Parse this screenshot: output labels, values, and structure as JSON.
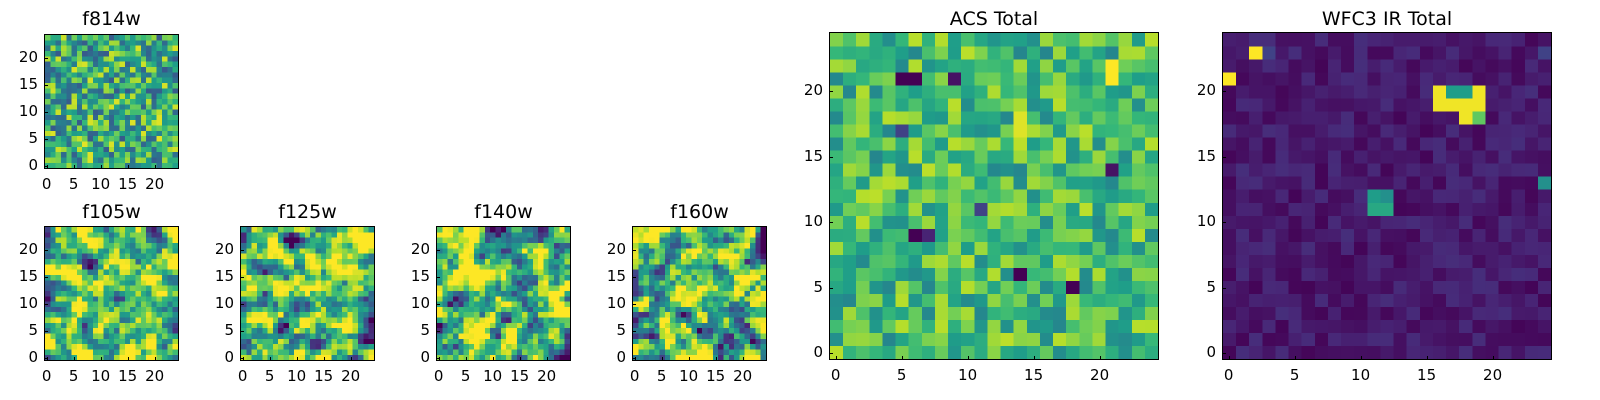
{
  "colormap": "viridis",
  "colors": {
    "background": "#ffffff",
    "axes": "#000000"
  },
  "chart_data": [
    {
      "type": "heatmap",
      "title": "f814w",
      "grid": [
        25,
        25
      ],
      "xlim": [
        0,
        25
      ],
      "ylim": [
        0,
        25
      ],
      "xticks": [
        0,
        5,
        10,
        15,
        20
      ],
      "yticks": [
        0,
        5,
        10,
        15,
        20
      ],
      "seed": 11,
      "mean": 0.62,
      "spread": 0.34,
      "smooth": 0,
      "hotspots": []
    },
    {
      "type": "heatmap",
      "title": "f105w",
      "grid": [
        25,
        25
      ],
      "xlim": [
        0,
        25
      ],
      "ylim": [
        0,
        25
      ],
      "xticks": [
        0,
        5,
        10,
        15,
        20
      ],
      "yticks": [
        0,
        5,
        10,
        15,
        20
      ],
      "seed": 23,
      "mean": 0.72,
      "spread": 0.5,
      "smooth": 1,
      "hotspots": []
    },
    {
      "type": "heatmap",
      "title": "f125w",
      "grid": [
        25,
        25
      ],
      "xlim": [
        0,
        25
      ],
      "ylim": [
        0,
        25
      ],
      "xticks": [
        0,
        5,
        10,
        15,
        20
      ],
      "yticks": [
        0,
        5,
        10,
        15,
        20
      ],
      "seed": 37,
      "mean": 0.66,
      "spread": 0.55,
      "smooth": 1,
      "hotspots": []
    },
    {
      "type": "heatmap",
      "title": "f140w",
      "grid": [
        25,
        25
      ],
      "xlim": [
        0,
        25
      ],
      "ylim": [
        0,
        25
      ],
      "xticks": [
        0,
        5,
        10,
        15,
        20
      ],
      "yticks": [
        0,
        5,
        10,
        15,
        20
      ],
      "seed": 41,
      "mean": 0.68,
      "spread": 0.55,
      "smooth": 1,
      "hotspots": []
    },
    {
      "type": "heatmap",
      "title": "f160w",
      "grid": [
        25,
        25
      ],
      "xlim": [
        0,
        25
      ],
      "ylim": [
        0,
        25
      ],
      "xticks": [
        0,
        5,
        10,
        15,
        20
      ],
      "yticks": [
        0,
        5,
        10,
        15,
        20
      ],
      "seed": 53,
      "mean": 0.68,
      "spread": 0.55,
      "smooth": 1,
      "hotspots": []
    },
    {
      "type": "heatmap",
      "title": "ACS Total",
      "grid": [
        25,
        25
      ],
      "xlim": [
        0,
        25
      ],
      "ylim": [
        0,
        25
      ],
      "xticks": [
        0,
        5,
        10,
        15,
        20
      ],
      "yticks": [
        0,
        5,
        10,
        15,
        20
      ],
      "seed": 67,
      "mean": 0.68,
      "spread": 0.22,
      "smooth": 0,
      "hotspots": [
        [
          5,
          21,
          0.0
        ],
        [
          6,
          21,
          0.0
        ],
        [
          9,
          21,
          0.05
        ],
        [
          14,
          18,
          0.95
        ],
        [
          14,
          17,
          0.95
        ],
        [
          14,
          16,
          0.9
        ],
        [
          21,
          22,
          1.0
        ],
        [
          21,
          21,
          1.0
        ],
        [
          6,
          9,
          0.0
        ],
        [
          7,
          9,
          0.1
        ],
        [
          14,
          6,
          0.0
        ],
        [
          18,
          5,
          0.0
        ],
        [
          21,
          14,
          0.05
        ],
        [
          5,
          17,
          0.2
        ],
        [
          11,
          11,
          0.2
        ]
      ]
    },
    {
      "type": "heatmap",
      "title": "WFC3 IR Total",
      "grid": [
        25,
        25
      ],
      "xlim": [
        0,
        25
      ],
      "ylim": [
        0,
        25
      ],
      "xticks": [
        0,
        5,
        10,
        15,
        20
      ],
      "yticks": [
        0,
        5,
        10,
        15,
        20
      ],
      "seed": 79,
      "mean": 0.07,
      "spread": 0.06,
      "smooth": 0,
      "hotspots": [
        [
          16,
          20,
          0.98
        ],
        [
          17,
          20,
          0.55
        ],
        [
          18,
          20,
          0.55
        ],
        [
          19,
          20,
          0.98
        ],
        [
          16,
          19,
          0.98
        ],
        [
          17,
          19,
          0.98
        ],
        [
          18,
          19,
          0.98
        ],
        [
          19,
          19,
          0.98
        ],
        [
          18,
          18,
          0.98
        ],
        [
          19,
          18,
          0.75
        ],
        [
          11,
          12,
          0.55
        ],
        [
          12,
          12,
          0.5
        ],
        [
          11,
          11,
          0.6
        ],
        [
          12,
          11,
          0.6
        ],
        [
          2,
          23,
          1.0
        ],
        [
          0,
          21,
          1.0
        ],
        [
          24,
          13,
          0.5
        ],
        [
          3,
          23,
          0.2
        ],
        [
          24,
          23,
          0.2
        ]
      ]
    }
  ]
}
